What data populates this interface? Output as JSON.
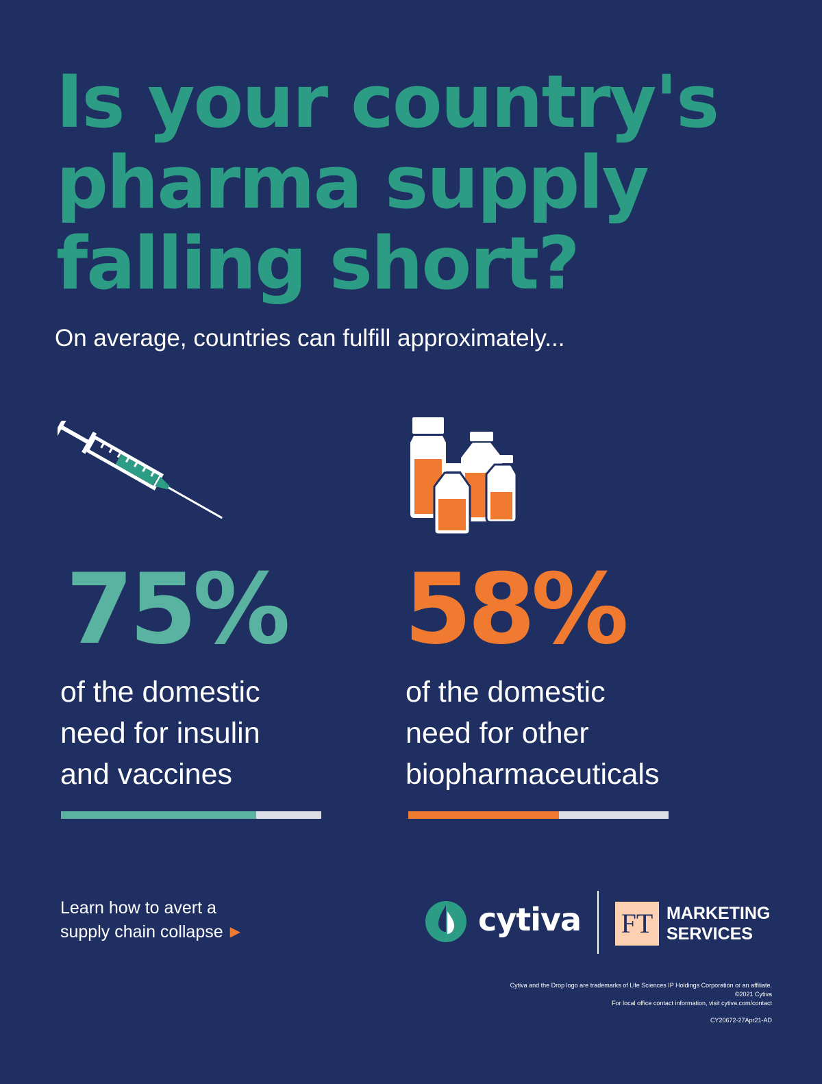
{
  "headline": {
    "lines": [
      "Is your country's",
      "pharma supply",
      "falling short?"
    ]
  },
  "subtitle": "On average, countries can fulfill approximately...",
  "stats": [
    {
      "value": "75%",
      "percent": 75,
      "description_lines": [
        "of the domestic",
        "need for insulin",
        "and vaccines"
      ],
      "color": "#5ab3a0",
      "icon": "syringe-icon"
    },
    {
      "value": "58%",
      "percent": 58,
      "description_lines": [
        "of the domestic",
        "need for other",
        "biopharmaceuticals"
      ],
      "color": "#f07a2f",
      "icon": "vials-icon"
    }
  ],
  "cta": {
    "lines": [
      "Learn how to avert a",
      "supply chain collapse"
    ],
    "arrow": "▶"
  },
  "logos": {
    "cytiva": "cytiva",
    "ft_mark": "FT",
    "ft_lines": [
      "MARKETING",
      "SERVICES"
    ]
  },
  "legal": {
    "lines": [
      "Cytiva and the Drop logo are trademarks of Life Sciences IP Holdings Corporation or an affiliate.",
      "©2021 Cytiva",
      "For local office contact information, visit cytiva.com/contact"
    ],
    "code": "CY20672-27Apr21-AD"
  },
  "colors": {
    "background": "#1f2f61",
    "headline": "#2d9c84",
    "teal": "#5ab3a0",
    "orange": "#f07a2f",
    "bar_track": "#dcdde5"
  }
}
